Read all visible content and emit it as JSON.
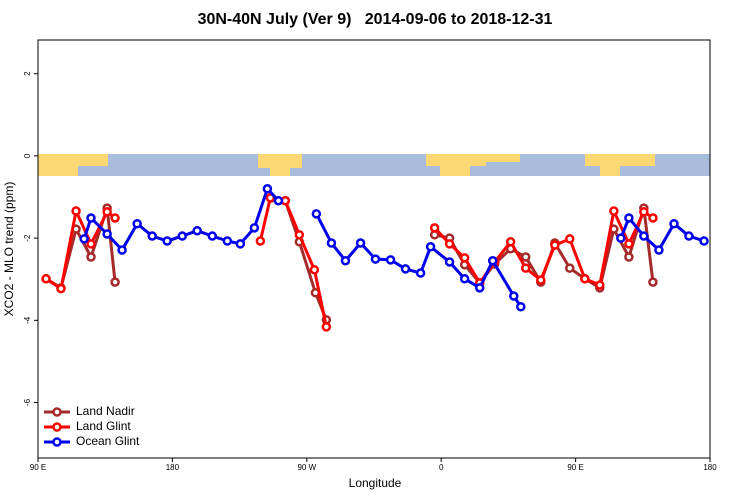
{
  "chart_data": {
    "type": "line",
    "title": "30N-40N July (Ver 9)   2014-09-06 to 2018-12-31",
    "x_label": "Longitude",
    "y_label": "XCO2 - MLO trend (ppm)",
    "xlim": [
      90,
      540
    ],
    "ylim": [
      -7.35,
      2.82
    ],
    "xticks": [
      {
        "value": 90,
        "label": "90 E"
      },
      180,
      {
        "value": 270,
        "label": "90 W"
      },
      {
        "value": 360,
        "label": "0"
      },
      {
        "value": 450,
        "label": "90 E"
      },
      {
        "value": 540,
        "label": "180"
      }
    ],
    "yticks": [
      2,
      0,
      -2,
      -4,
      -6
    ],
    "legend": "bottom-left",
    "series": [
      {
        "name": "Land Nadir",
        "color": "#a52a2a",
        "x": [
          95.4,
          105.4,
          115.5,
          125.5,
          136.3,
          141.6,
          null,
          246.3,
          255.6,
          265.0,
          275.8,
          283.1,
          null,
          355.6,
          365.6,
          375.7,
          385.8,
          395.8,
          406.5,
          416.6,
          426.7,
          436.1,
          446.1,
          456.2,
          466.2,
          475.6,
          485.7,
          495.7,
          501.8
        ],
        "values": [
          -2.99,
          -3.21,
          -1.78,
          -2.46,
          -1.27,
          -3.07,
          null,
          -1.02,
          -1.09,
          -2.09,
          -3.33,
          -3.99,
          null,
          -1.92,
          -2.0,
          -2.65,
          -3.09,
          -2.63,
          -2.26,
          -2.46,
          -3.07,
          -2.12,
          -2.73,
          -2.99,
          -3.21,
          -1.78,
          -2.46,
          -1.27,
          -3.07
        ]
      },
      {
        "name": "Land Glint",
        "color": "#ff0000",
        "x": [
          95.4,
          105.4,
          115.5,
          125.5,
          136.3,
          141.6,
          null,
          238.9,
          245.6,
          255.6,
          265.0,
          275.1,
          283.1,
          null,
          355.6,
          365.6,
          375.7,
          385.8,
          395.8,
          406.5,
          416.6,
          426.7,
          436.1,
          446.1,
          456.2,
          466.2,
          475.6,
          485.7,
          495.7,
          501.8
        ],
        "values": [
          -2.99,
          -3.23,
          -1.34,
          -2.14,
          -1.36,
          -1.51,
          null,
          -2.07,
          -1.02,
          -1.09,
          -1.92,
          -2.77,
          -4.16,
          null,
          -1.75,
          -2.14,
          -2.48,
          -3.09,
          -2.58,
          -2.09,
          -2.73,
          -3.02,
          -2.17,
          -2.02,
          -2.99,
          -3.14,
          -1.34,
          -2.14,
          -1.36,
          -1.51
        ]
      },
      {
        "name": "Ocean Glint",
        "color": "#0000ee",
        "x": [
          120.9,
          125.5,
          136.3,
          146.3,
          156.4,
          166.5,
          176.5,
          186.6,
          196.6,
          206.7,
          216.8,
          225.5,
          234.9,
          243.6,
          251.0,
          null,
          276.4,
          286.5,
          295.9,
          306.0,
          316.0,
          326.1,
          336.1,
          346.2,
          352.9,
          365.6,
          375.7,
          385.8,
          394.5,
          408.6,
          413.3,
          null,
          480.3,
          485.7,
          495.7,
          505.8,
          515.9,
          525.9,
          536.0
        ],
        "values": [
          -2.02,
          -1.51,
          -1.9,
          -2.29,
          -1.65,
          -1.95,
          -2.07,
          -1.95,
          -1.82,
          -1.95,
          -2.07,
          -2.14,
          -1.75,
          -0.8,
          -1.09,
          null,
          -1.41,
          -2.12,
          -2.55,
          -2.12,
          -2.51,
          -2.53,
          -2.75,
          -2.85,
          -2.21,
          -2.58,
          -2.99,
          -3.21,
          -2.55,
          -3.41,
          -3.67,
          null,
          -2.0,
          -1.51,
          -1.95,
          -2.29,
          -1.65,
          -1.95,
          -2.07
        ]
      }
    ]
  }
}
